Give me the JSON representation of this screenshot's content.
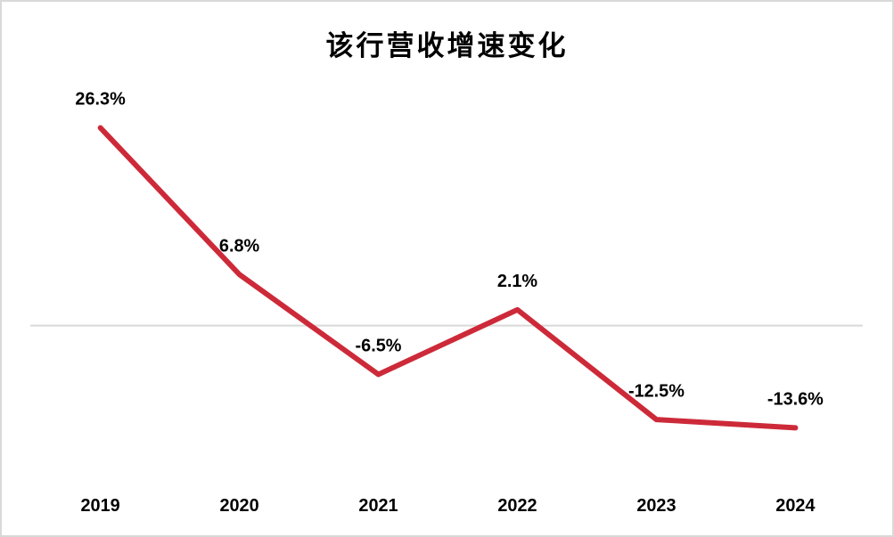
{
  "title": "该行营收增速变化",
  "chart_data": {
    "type": "line",
    "title": "该行营收增速变化",
    "categories": [
      "2019",
      "2020",
      "2021",
      "2022",
      "2023",
      "2024"
    ],
    "values": [
      26.3,
      6.8,
      -6.5,
      2.1,
      -12.5,
      -13.6
    ],
    "labels": [
      "26.3%",
      "6.8%",
      "-6.5%",
      "2.1%",
      "-12.5%",
      "-13.6%"
    ],
    "xlabel": "",
    "ylabel": "",
    "ylim": [
      -20,
      32
    ],
    "grid": "zero-line-only",
    "legend": "none",
    "data_labels_visible": true,
    "line_color": "#cd2a39",
    "zero_line_color": "#d9d9d9",
    "label_color": "#000000",
    "frame_border_color": "#d9d9d9"
  }
}
